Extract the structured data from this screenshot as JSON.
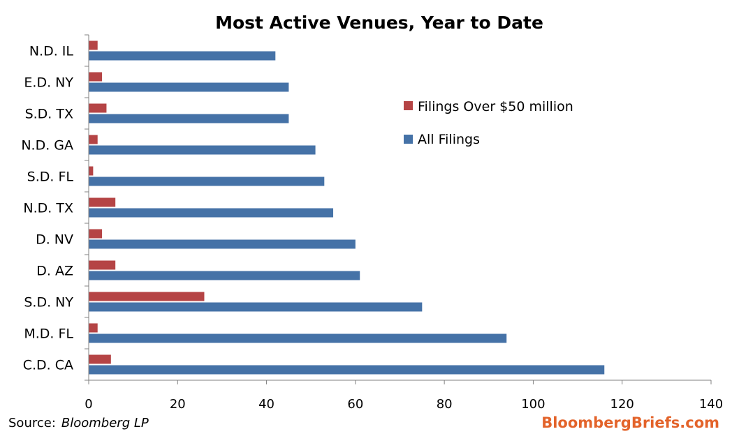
{
  "colors": {
    "all_filings": "#4572a7",
    "over_50m": "#b54445",
    "axis": "#808080",
    "brand": "#e3632a"
  },
  "footer": {
    "source_label": "Source:",
    "source_name": "Bloomberg LP",
    "brand": "BloombergBriefs.com"
  },
  "chart_data": {
    "type": "bar",
    "orientation": "horizontal",
    "title": "Most Active Venues, Year to Date",
    "categories": [
      "N.D. IL",
      "E.D. NY",
      "S.D. TX",
      "N.D. GA",
      "S.D. FL",
      "N.D. TX",
      "D. NV",
      "D. AZ",
      "S.D. NY",
      "M.D. FL",
      "C.D. CA"
    ],
    "series": [
      {
        "name": "Filings Over $50 million",
        "values": [
          2,
          3,
          4,
          2,
          1,
          6,
          3,
          6,
          26,
          2,
          5
        ]
      },
      {
        "name": "All Filings",
        "values": [
          42,
          45,
          45,
          51,
          53,
          55,
          60,
          61,
          75,
          94,
          116
        ]
      }
    ],
    "xlim": [
      0,
      140
    ],
    "xticks": [
      "0",
      "20",
      "40",
      "60",
      "80",
      "100",
      "120",
      "140"
    ],
    "grid": false,
    "legend_position": "right-top"
  }
}
